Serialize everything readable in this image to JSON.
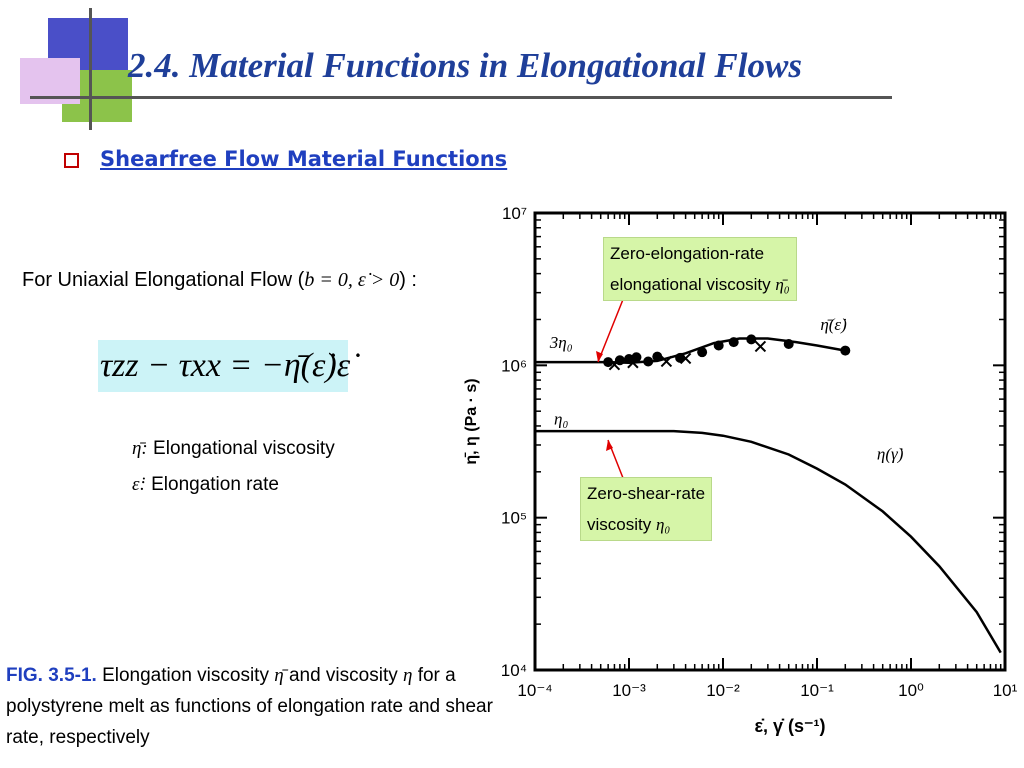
{
  "slide": {
    "title": "2.4. Material Functions in Elongational Flows",
    "subtitle": "Shearfree Flow Material Functions",
    "flow_text": "For Uniaxial Elongational Flow (",
    "flow_cond": "b = 0, ε̇ > 0",
    "flow_end": ") :",
    "equation": "τzz − τxx = −η̄(ε̇)ε̇",
    "def_eta_sym": "η̄:",
    "def_eta_text": "Elongational viscosity",
    "def_eps_sym": "ε̇:",
    "def_eps_text": "Elongation rate",
    "caption_fig": "FIG. 3.5-1.",
    "caption_text1": " Elongation viscosity ",
    "caption_sym1": "η̄",
    "caption_text2": " and viscosity ",
    "caption_sym2": "η",
    "caption_text3": " for a polystyrene melt as functions of elongation rate and shear rate, respectively",
    "callout_elong_1": "Zero-elongation-rate",
    "callout_elong_2": "elongational viscosity ",
    "callout_elong_sym": "η̄₀",
    "callout_shear_1": "Zero-shear-rate",
    "callout_shear_2": "viscosity ",
    "callout_shear_sym": "η₀"
  },
  "colors": {
    "title": "#1f3f99",
    "subtitle": "#1f3fbf",
    "bullet": "#c00000",
    "equation_bg": "#ccf3f7",
    "callout_bg": "#d6f5a8",
    "arrow": "#e00000"
  },
  "chart_data": {
    "type": "line",
    "xscale": "log",
    "yscale": "log",
    "xlim": [
      0.0001,
      10
    ],
    "ylim": [
      10000,
      10000000
    ],
    "xlabel": "ε̇, γ̇ (s⁻¹)",
    "ylabel": "η̄, η (Pa · s)",
    "x_ticks": [
      "10⁻⁴",
      "10⁻³",
      "10⁻²",
      "10⁻¹",
      "10⁰",
      "10¹"
    ],
    "y_ticks": [
      "10⁴",
      "10⁵",
      "10⁶",
      "10⁷"
    ],
    "annotations": [
      "3η₀",
      "η₀",
      "η̄(ε̇)",
      "η(γ̇)"
    ],
    "series": [
      {
        "name": "η̄(ε̇)",
        "x": [
          0.0001,
          0.0003,
          0.0006,
          0.001,
          0.002,
          0.004,
          0.008,
          0.015,
          0.03,
          0.06,
          0.1,
          0.2
        ],
        "y": [
          1050000,
          1050000,
          1050000,
          1040000,
          1070000,
          1200000,
          1400000,
          1500000,
          1500000,
          1420000,
          1350000,
          1250000
        ]
      },
      {
        "name": "η(γ̇)",
        "x": [
          0.0001,
          0.001,
          0.003,
          0.006,
          0.01,
          0.02,
          0.05,
          0.1,
          0.2,
          0.5,
          1,
          2,
          5,
          9
        ],
        "y": [
          370000,
          370000,
          370000,
          360000,
          345000,
          315000,
          260000,
          210000,
          165000,
          110000,
          75000,
          48000,
          24000,
          13000
        ]
      }
    ],
    "points_circle": {
      "x": [
        0.0006,
        0.0008,
        0.001,
        0.0012,
        0.0016,
        0.002,
        0.0035,
        0.006,
        0.009,
        0.013,
        0.02,
        0.05,
        0.2
      ],
      "y": [
        1050000,
        1080000,
        1100000,
        1130000,
        1060000,
        1140000,
        1120000,
        1220000,
        1350000,
        1420000,
        1480000,
        1380000,
        1250000
      ]
    },
    "points_cross": {
      "x": [
        0.0007,
        0.0011,
        0.0025,
        0.004,
        0.025
      ],
      "y": [
        1010000,
        1040000,
        1060000,
        1110000,
        1330000
      ]
    }
  }
}
